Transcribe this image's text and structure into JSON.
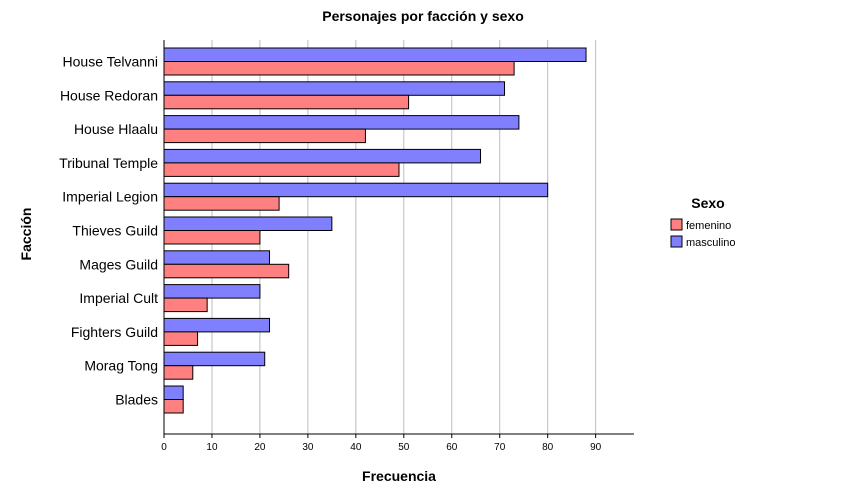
{
  "chart_data": {
    "type": "bar",
    "orientation": "horizontal",
    "title": "Personajes por facción y sexo",
    "xlabel": "Frecuencia",
    "ylabel": "Facción",
    "xlim": [
      0,
      98
    ],
    "xticks": [
      0,
      10,
      20,
      30,
      40,
      50,
      60,
      70,
      80,
      90
    ],
    "grid": "vertical",
    "legend_position": "right",
    "legend_title": "Sexo",
    "categories": [
      "House Telvanni",
      "House Redoran",
      "House Hlaalu",
      "Tribunal Temple",
      "Imperial Legion",
      "Thieves Guild",
      "Mages Guild",
      "Imperial Cult",
      "Fighters Guild",
      "Morag Tong",
      "Blades"
    ],
    "series": [
      {
        "name": "masculino",
        "color": "#8080ff",
        "values": [
          88,
          71,
          74,
          66,
          80,
          35,
          22,
          20,
          22,
          21,
          4
        ]
      },
      {
        "name": "femenino",
        "color": "#ff8080",
        "values": [
          73,
          51,
          42,
          49,
          24,
          20,
          26,
          9,
          7,
          6,
          4
        ]
      }
    ],
    "legend_order": [
      "femenino",
      "masculino"
    ]
  }
}
